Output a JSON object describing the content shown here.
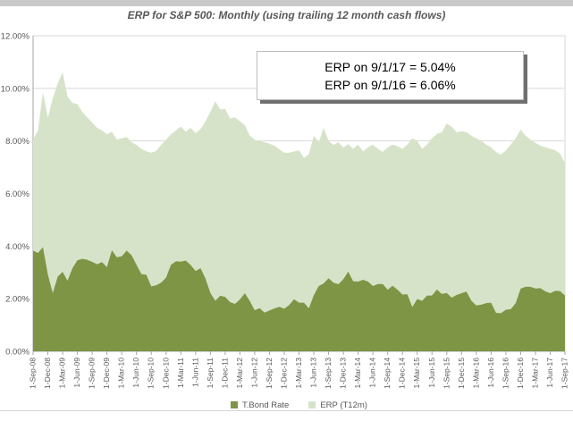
{
  "header": {
    "title": "ERP for S&P 500: Monthly (using trailing 12 month cash flows)"
  },
  "annotation": {
    "line1": "ERP on 9/1/17 = 5.04%",
    "line2": "ERP on 9/1/16 = 6.06%"
  },
  "legend": {
    "items": [
      {
        "label": "T.Bond Rate",
        "color": "#7d9545"
      },
      {
        "label": "ERP (T12m)",
        "color": "#d7e3c9"
      }
    ]
  },
  "colors": {
    "tbond_area": "#7d9545",
    "erp_area": "#d7e3c9",
    "gridline": "#d9d9d9",
    "axis": "#a6a6a6",
    "label_text": "#595959",
    "top_band": "#c9c9c9"
  },
  "chart_data": {
    "type": "area",
    "stacked": true,
    "title": "ERP for S&P 500: Monthly (using trailing 12 month cash flows)",
    "xlabel": "",
    "ylabel": "",
    "ylim": [
      0,
      12
    ],
    "grid": true,
    "legend_position": "bottom",
    "x_tick_step": 3,
    "y_ticks": [
      "0.00%",
      "2.00%",
      "4.00%",
      "6.00%",
      "8.00%",
      "10.00%",
      "12.00%"
    ],
    "categories": [
      "1-Sep-08",
      "1-Oct-08",
      "1-Nov-08",
      "1-Dec-08",
      "1-Jan-09",
      "1-Feb-09",
      "1-Mar-09",
      "1-Apr-09",
      "1-May-09",
      "1-Jun-09",
      "1-Jul-09",
      "1-Aug-09",
      "1-Sep-09",
      "1-Oct-09",
      "1-Nov-09",
      "1-Dec-09",
      "1-Jan-10",
      "1-Feb-10",
      "1-Mar-10",
      "1-Apr-10",
      "1-May-10",
      "1-Jun-10",
      "1-Jul-10",
      "1-Aug-10",
      "1-Sep-10",
      "1-Oct-10",
      "1-Nov-10",
      "1-Dec-10",
      "1-Jan-11",
      "1-Feb-11",
      "1-Mar-11",
      "1-Apr-11",
      "1-May-11",
      "1-Jun-11",
      "1-Jul-11",
      "1-Aug-11",
      "1-Sep-11",
      "1-Oct-11",
      "1-Nov-11",
      "1-Dec-11",
      "1-Jan-12",
      "1-Feb-12",
      "1-Mar-12",
      "1-Apr-12",
      "1-May-12",
      "1-Jun-12",
      "1-Jul-12",
      "1-Aug-12",
      "1-Sep-12",
      "1-Oct-12",
      "1-Nov-12",
      "1-Dec-12",
      "1-Jan-13",
      "1-Feb-13",
      "1-Mar-13",
      "1-Apr-13",
      "1-May-13",
      "1-Jun-13",
      "1-Jul-13",
      "1-Aug-13",
      "1-Sep-13",
      "1-Oct-13",
      "1-Nov-13",
      "1-Dec-13",
      "1-Jan-14",
      "1-Feb-14",
      "1-Mar-14",
      "1-Apr-14",
      "1-May-14",
      "1-Jun-14",
      "1-Jul-14",
      "1-Aug-14",
      "1-Sep-14",
      "1-Oct-14",
      "1-Nov-14",
      "1-Dec-14",
      "1-Jan-15",
      "1-Feb-15",
      "1-Mar-15",
      "1-Apr-15",
      "1-May-15",
      "1-Jun-15",
      "1-Jul-15",
      "1-Aug-15",
      "1-Sep-15",
      "1-Oct-15",
      "1-Nov-15",
      "1-Dec-15",
      "1-Jan-16",
      "1-Feb-16",
      "1-Mar-16",
      "1-Apr-16",
      "1-May-16",
      "1-Jun-16",
      "1-Jul-16",
      "1-Aug-16",
      "1-Sep-16",
      "1-Oct-16",
      "1-Nov-16",
      "1-Dec-16",
      "1-Jan-17",
      "1-Feb-17",
      "1-Mar-17",
      "1-Apr-17",
      "1-May-17",
      "1-Jun-17",
      "1-Jul-17",
      "1-Aug-17",
      "1-Sep-17"
    ],
    "series": [
      {
        "name": "T.Bond Rate",
        "color": "#7d9545",
        "values": [
          3.83,
          3.74,
          3.96,
          2.92,
          2.21,
          2.84,
          3.02,
          2.68,
          3.16,
          3.46,
          3.52,
          3.48,
          3.4,
          3.31,
          3.39,
          3.2,
          3.84,
          3.58,
          3.61,
          3.83,
          3.65,
          3.29,
          2.93,
          2.91,
          2.47,
          2.51,
          2.61,
          2.8,
          3.29,
          3.42,
          3.41,
          3.45,
          3.28,
          3.05,
          3.16,
          2.77,
          2.22,
          1.92,
          2.11,
          2.07,
          1.87,
          1.8,
          1.97,
          2.21,
          1.91,
          1.56,
          1.64,
          1.47,
          1.55,
          1.63,
          1.69,
          1.62,
          1.76,
          1.98,
          1.85,
          1.85,
          1.63,
          2.13,
          2.48,
          2.58,
          2.78,
          2.61,
          2.55,
          2.74,
          3.03,
          2.66,
          2.65,
          2.72,
          2.65,
          2.48,
          2.56,
          2.56,
          2.34,
          2.49,
          2.34,
          2.16,
          2.17,
          1.68,
          1.99,
          1.92,
          2.12,
          2.12,
          2.35,
          2.18,
          2.22,
          2.04,
          2.14,
          2.21,
          2.27,
          1.92,
          1.74,
          1.77,
          1.83,
          1.85,
          1.46,
          1.45,
          1.58,
          1.6,
          1.83,
          2.38,
          2.45,
          2.45,
          2.39,
          2.4,
          2.28,
          2.21,
          2.3,
          2.29,
          2.12
        ]
      },
      {
        "name": "ERP (T12m)",
        "color": "#d7e3c9",
        "values": [
          4.22,
          4.66,
          5.9,
          5.96,
          7.41,
          7.35,
          7.59,
          7.0,
          6.29,
          5.94,
          5.58,
          5.42,
          5.3,
          5.19,
          5.01,
          5.05,
          4.51,
          4.47,
          4.49,
          4.32,
          4.3,
          4.56,
          4.77,
          4.69,
          5.08,
          5.11,
          5.24,
          5.25,
          4.96,
          4.98,
          5.14,
          4.9,
          5.22,
          5.25,
          5.29,
          5.98,
          6.88,
          7.58,
          7.09,
          7.15,
          6.98,
          7.1,
          6.78,
          6.39,
          6.29,
          6.49,
          6.36,
          6.48,
          6.35,
          6.19,
          5.99,
          5.93,
          5.79,
          5.62,
          5.8,
          5.5,
          5.87,
          6.07,
          5.47,
          5.92,
          5.22,
          5.24,
          5.4,
          5.01,
          4.85,
          5.04,
          5.21,
          4.88,
          5.11,
          5.38,
          5.14,
          5.02,
          5.42,
          5.37,
          5.46,
          5.54,
          5.69,
          6.42,
          6.01,
          5.78,
          5.74,
          5.98,
          5.92,
          6.15,
          6.45,
          6.5,
          6.19,
          6.16,
          6.06,
          6.28,
          6.36,
          6.23,
          6.03,
          5.91,
          6.12,
          6.03,
          6.06,
          6.26,
          6.27,
          6.05,
          5.75,
          5.6,
          5.54,
          5.42,
          5.48,
          5.49,
          5.35,
          5.23,
          5.04
        ]
      }
    ],
    "annotations": [
      "ERP on 9/1/17 = 5.04%",
      "ERP on 9/1/16 = 6.06%"
    ]
  }
}
